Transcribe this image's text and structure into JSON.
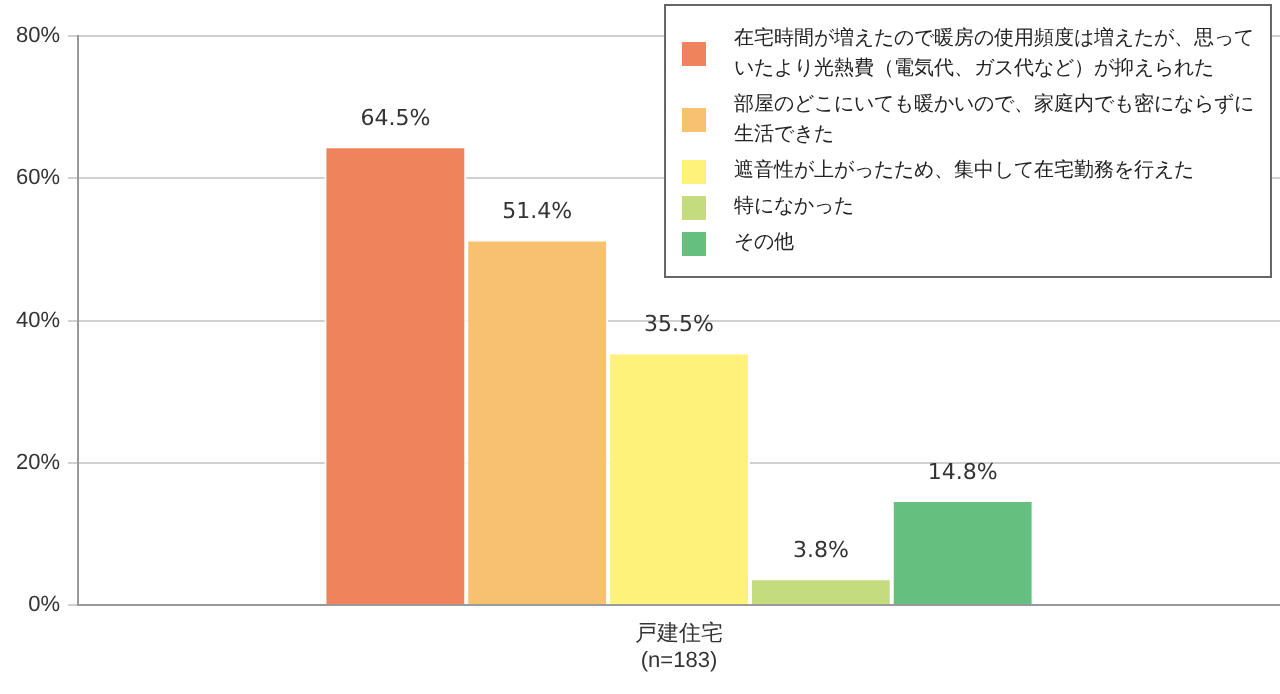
{
  "chart_data": {
    "type": "bar",
    "categories": [
      "戸建住宅\n(n=183)"
    ],
    "series": [
      {
        "name": "在宅時間が増えたので暖房の使用頻度は増えたが、思っていたより光熱費（電気代、ガス代など）が抑えられた",
        "color": "#ef845c",
        "values": [
          64.5
        ],
        "value_labels": [
          "64.5%"
        ]
      },
      {
        "name": "部屋のどこにいても暖かいので、家庭内でも密にならずに生活できた",
        "color": "#f7c16f",
        "values": [
          51.4
        ],
        "value_labels": [
          "51.4%"
        ]
      },
      {
        "name": "遮音性が上がったため、集中して在宅勤務を行えた",
        "color": "#fef27a",
        "values": [
          35.5
        ],
        "value_labels": [
          "35.5%"
        ]
      },
      {
        "name": "特になかった",
        "color": "#c5dc7e",
        "values": [
          3.8
        ],
        "value_labels": [
          "3.8%"
        ]
      },
      {
        "name": "その他",
        "color": "#65bf7e",
        "values": [
          14.8
        ],
        "value_labels": [
          "14.8%"
        ]
      }
    ],
    "ylim": [
      0,
      80
    ],
    "yticks": [
      {
        "value": 0,
        "label": "0%"
      },
      {
        "value": 20,
        "label": "20%"
      },
      {
        "value": 40,
        "label": "40%"
      },
      {
        "value": 60,
        "label": "60%"
      },
      {
        "value": 80,
        "label": "80%"
      }
    ],
    "grid": "y",
    "legend": "top right"
  }
}
